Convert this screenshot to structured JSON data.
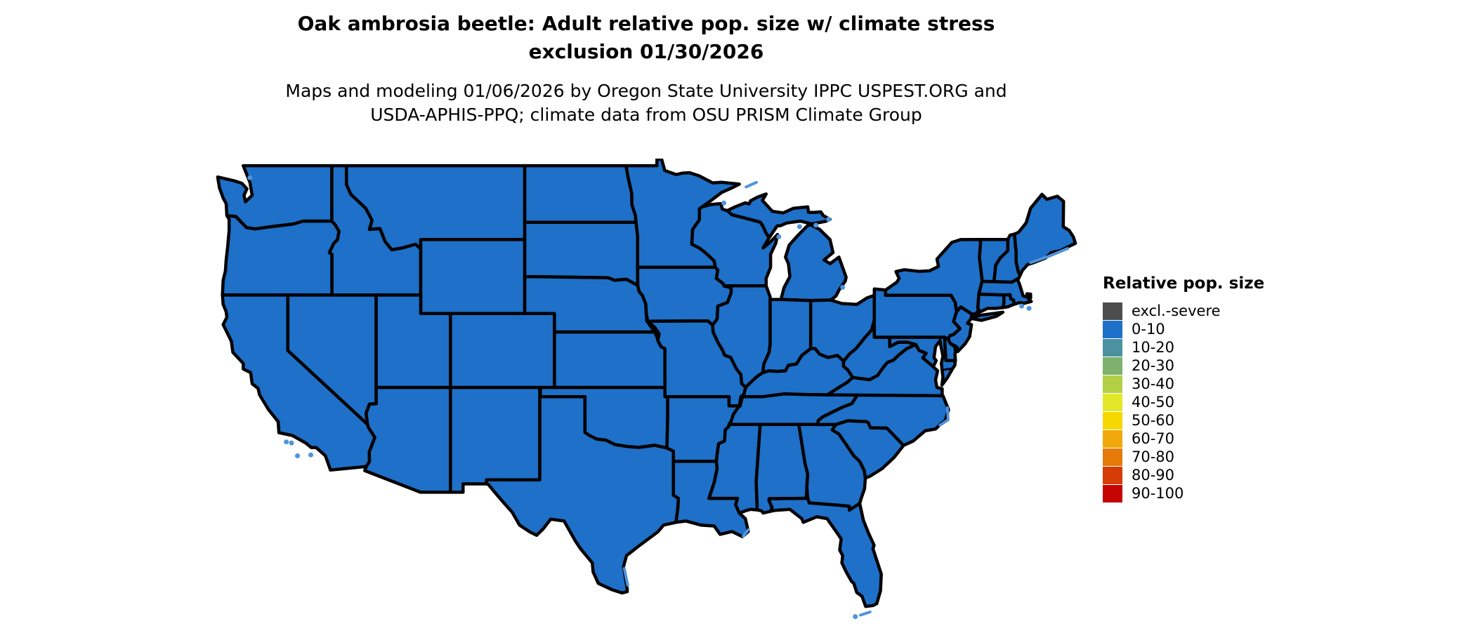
{
  "header": {
    "title_line1": "Oak ambrosia beetle: Adult relative pop. size w/ climate stress",
    "title_line2": "exclusion 01/30/2026",
    "subtitle_line1": "Maps and modeling 01/06/2026 by Oregon State University IPPC USPEST.ORG and",
    "subtitle_line2": "USDA-APHIS-PPQ; climate data from OSU PRISM Climate Group"
  },
  "legend": {
    "title": "Relative pop. size",
    "items": [
      {
        "label": "excl.-severe",
        "color": "#4d4d4d"
      },
      {
        "label": "0-10",
        "color": "#1e70c8"
      },
      {
        "label": "10-20",
        "color": "#4b91a0"
      },
      {
        "label": "20-30",
        "color": "#7db16d"
      },
      {
        "label": "30-40",
        "color": "#b2cf45"
      },
      {
        "label": "40-50",
        "color": "#e2e829"
      },
      {
        "label": "50-60",
        "color": "#f5d800"
      },
      {
        "label": "60-70",
        "color": "#f0a80a"
      },
      {
        "label": "70-80",
        "color": "#e67a08"
      },
      {
        "label": "80-90",
        "color": "#d63c06"
      },
      {
        "label": "90-100",
        "color": "#c60404"
      }
    ]
  },
  "map": {
    "land_color": "#1e70c8",
    "water_detail_color": "#4f94dd",
    "outline_color": "#000000",
    "background_color": "#ffffff",
    "uniform_state_class": "0-10"
  }
}
